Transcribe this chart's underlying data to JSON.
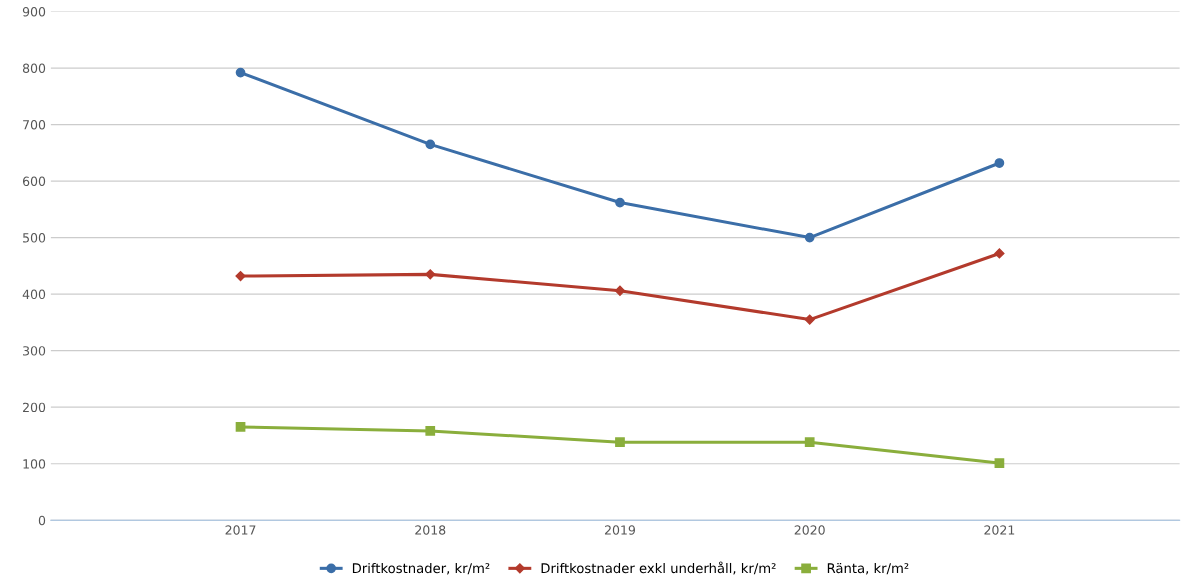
{
  "chart_data": {
    "type": "line",
    "categories": [
      "2017",
      "2018",
      "2019",
      "2020",
      "2021"
    ],
    "series": [
      {
        "name": "Driftkostnader, kr/m²",
        "color": "#3b6ea8",
        "marker": "circle",
        "values": [
          792,
          665,
          562,
          500,
          632
        ]
      },
      {
        "name": "Driftkostnader exkl underhåll, kr/m²",
        "color": "#b33a2c",
        "marker": "diamond",
        "values": [
          432,
          435,
          406,
          355,
          472
        ]
      },
      {
        "name": "Ränta, kr/m²",
        "color": "#8aae3c",
        "marker": "square",
        "values": [
          165,
          158,
          138,
          138,
          101
        ]
      }
    ],
    "ylim": [
      0,
      900
    ],
    "yticks": [
      0,
      100,
      200,
      300,
      400,
      500,
      600,
      700,
      800,
      900
    ],
    "grid": "y",
    "legend": "bottom",
    "line_style": "solid"
  }
}
